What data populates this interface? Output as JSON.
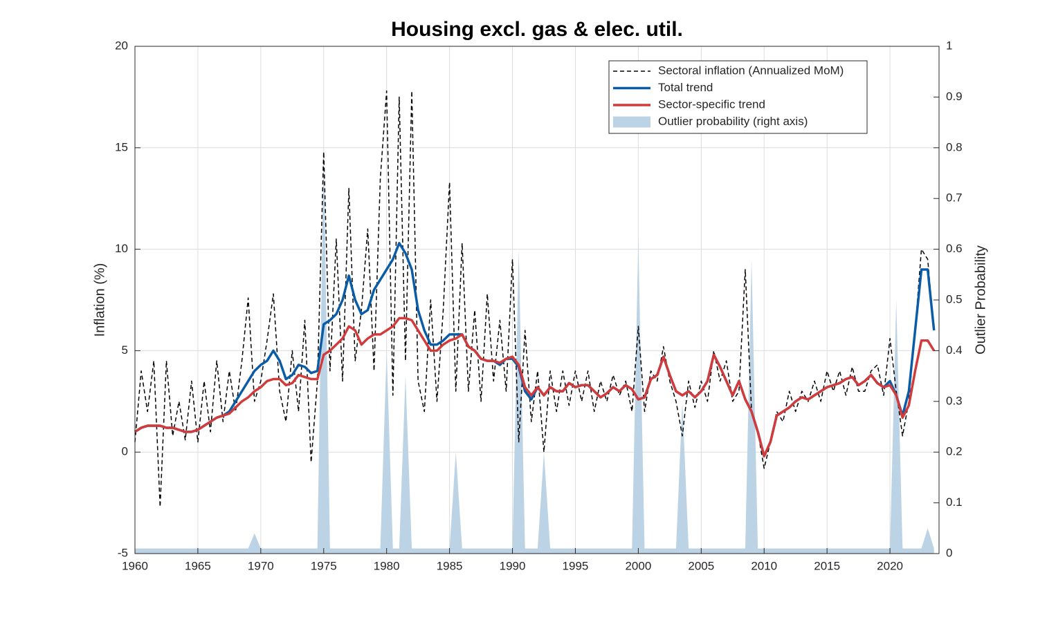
{
  "chart_data": {
    "type": "line",
    "title": "Housing excl. gas & elec. util.",
    "ylabel": "Inflation (%)",
    "y2label": "Outlier Probability",
    "xlim": [
      1960,
      2023.9
    ],
    "ylim": [
      -5,
      20
    ],
    "y2lim": [
      0,
      1
    ],
    "xticks": [
      1960,
      1965,
      1970,
      1975,
      1980,
      1985,
      1990,
      1995,
      2000,
      2005,
      2010,
      2015,
      2020
    ],
    "yticks": [
      -5,
      0,
      5,
      10,
      15,
      20
    ],
    "y2ticks": [
      0,
      0.1,
      0.2,
      0.3,
      0.4,
      0.5,
      0.6,
      0.7,
      0.8,
      0.9,
      1
    ],
    "grid": true,
    "legend": "top-right",
    "x": [
      1960,
      1960.5,
      1961,
      1961.5,
      1962,
      1962.5,
      1963,
      1963.5,
      1964,
      1964.5,
      1965,
      1965.5,
      1966,
      1966.5,
      1967,
      1967.5,
      1968,
      1968.5,
      1969,
      1969.5,
      1970,
      1970.5,
      1971,
      1971.5,
      1972,
      1972.5,
      1973,
      1973.5,
      1974,
      1974.5,
      1975,
      1975.5,
      1976,
      1976.5,
      1977,
      1977.5,
      1978,
      1978.5,
      1979,
      1979.5,
      1980,
      1980.5,
      1981,
      1981.5,
      1982,
      1982.5,
      1983,
      1983.5,
      1984,
      1984.5,
      1985,
      1985.5,
      1986,
      1986.5,
      1987,
      1987.5,
      1988,
      1988.5,
      1989,
      1989.5,
      1990,
      1990.5,
      1991,
      1991.5,
      1992,
      1992.5,
      1993,
      1993.5,
      1994,
      1994.5,
      1995,
      1995.5,
      1996,
      1996.5,
      1997,
      1997.5,
      1998,
      1998.5,
      1999,
      1999.5,
      2000,
      2000.5,
      2001,
      2001.5,
      2002,
      2002.5,
      2003,
      2003.5,
      2004,
      2004.5,
      2005,
      2005.5,
      2006,
      2006.5,
      2007,
      2007.5,
      2008,
      2008.5,
      2009,
      2009.5,
      2010,
      2010.5,
      2011,
      2011.5,
      2012,
      2012.5,
      2013,
      2013.5,
      2014,
      2014.5,
      2015,
      2015.5,
      2016,
      2016.5,
      2017,
      2017.5,
      2018,
      2018.5,
      2019,
      2019.5,
      2020,
      2020.5,
      2021,
      2021.5,
      2022,
      2022.5,
      2023,
      2023.5
    ],
    "series": [
      {
        "name": "Outlier probability (right axis)",
        "color": "#bcd3e6",
        "kind": "area",
        "axis": "y2",
        "values": [
          0.01,
          0.01,
          0.01,
          0.01,
          0.01,
          0.01,
          0.01,
          0.01,
          0.01,
          0.01,
          0.01,
          0.01,
          0.01,
          0.01,
          0.01,
          0.01,
          0.01,
          0.01,
          0.01,
          0.04,
          0.01,
          0.01,
          0.01,
          0.01,
          0.01,
          0.01,
          0.01,
          0.01,
          0.01,
          0.01,
          0.8,
          0.01,
          0.01,
          0.01,
          0.01,
          0.01,
          0.01,
          0.01,
          0.01,
          0.01,
          0.4,
          0.01,
          0.01,
          0.35,
          0.01,
          0.01,
          0.01,
          0.01,
          0.01,
          0.01,
          0.01,
          0.2,
          0.01,
          0.01,
          0.01,
          0.01,
          0.01,
          0.01,
          0.01,
          0.01,
          0.01,
          0.6,
          0.01,
          0.01,
          0.01,
          0.2,
          0.01,
          0.01,
          0.01,
          0.01,
          0.01,
          0.01,
          0.01,
          0.01,
          0.01,
          0.01,
          0.01,
          0.01,
          0.01,
          0.01,
          0.62,
          0.01,
          0.01,
          0.01,
          0.01,
          0.01,
          0.01,
          0.3,
          0.01,
          0.01,
          0.01,
          0.01,
          0.01,
          0.01,
          0.01,
          0.01,
          0.01,
          0.01,
          0.58,
          0.01,
          0.01,
          0.01,
          0.01,
          0.01,
          0.01,
          0.01,
          0.01,
          0.01,
          0.01,
          0.01,
          0.01,
          0.01,
          0.01,
          0.01,
          0.01,
          0.01,
          0.01,
          0.01,
          0.01,
          0.01,
          0.01,
          0.5,
          0.01,
          0.01,
          0.01,
          0.01,
          0.05,
          0.01
        ]
      },
      {
        "name": "Sectoral inflation (Annualized MoM)",
        "color": "#000000",
        "kind": "dashed",
        "values": [
          0.5,
          4.0,
          2.0,
          4.5,
          -2.7,
          4.5,
          0.8,
          2.5,
          0.6,
          3.5,
          0.5,
          3.5,
          1.0,
          4.5,
          1.5,
          4.0,
          2.0,
          4.5,
          7.6,
          2.5,
          3.5,
          5.5,
          7.8,
          3.0,
          1.5,
          5.0,
          2.0,
          6.5,
          -0.5,
          3.5,
          14.8,
          4.0,
          10.5,
          3.5,
          13.0,
          4.5,
          7.0,
          11.0,
          4.0,
          13.5,
          17.8,
          2.8,
          17.5,
          4.5,
          17.8,
          3.5,
          2.0,
          7.5,
          2.5,
          7.0,
          13.3,
          3.0,
          10.3,
          3.0,
          7.0,
          2.5,
          7.8,
          3.5,
          6.5,
          3.0,
          9.5,
          0.5,
          6.0,
          1.5,
          4.0,
          0.0,
          4.0,
          2.0,
          4.0,
          2.3,
          4.0,
          2.5,
          4.0,
          2.0,
          3.5,
          2.5,
          3.8,
          2.8,
          3.5,
          2.0,
          6.2,
          2.0,
          4.0,
          3.5,
          5.2,
          3.5,
          2.5,
          0.8,
          3.5,
          2.2,
          3.5,
          2.5,
          5.0,
          3.5,
          4.5,
          2.5,
          3.0,
          9.0,
          2.0,
          1.0,
          -0.8,
          0.5,
          2.0,
          1.5,
          3.0,
          2.0,
          3.0,
          2.5,
          3.5,
          2.5,
          4.0,
          3.0,
          4.0,
          2.8,
          4.2,
          3.0,
          3.0,
          4.0,
          4.3,
          2.8,
          5.6,
          3.0,
          0.8,
          2.5,
          6.0,
          10.0,
          9.5,
          6.0
        ]
      },
      {
        "name": "Total trend",
        "color": "#0b5ca6",
        "kind": "solid",
        "values": [
          1.0,
          1.2,
          1.3,
          1.3,
          1.3,
          1.2,
          1.2,
          1.1,
          1.0,
          1.0,
          1.1,
          1.3,
          1.5,
          1.7,
          1.8,
          2.0,
          2.5,
          3.0,
          3.5,
          4.0,
          4.3,
          4.5,
          5.0,
          4.5,
          3.6,
          3.8,
          4.3,
          4.2,
          3.9,
          4.0,
          6.3,
          6.5,
          6.8,
          7.5,
          8.7,
          7.5,
          6.8,
          7.0,
          8.0,
          8.5,
          9.0,
          9.5,
          10.3,
          9.8,
          9.0,
          7.0,
          6.0,
          5.3,
          5.3,
          5.5,
          5.8,
          5.8,
          5.8,
          5.2,
          5.0,
          4.6,
          4.5,
          4.5,
          4.3,
          4.6,
          4.6,
          4.2,
          3.0,
          2.6,
          3.2,
          2.8,
          3.2,
          3.0,
          3.0,
          3.4,
          3.2,
          3.3,
          3.3,
          3.0,
          2.7,
          2.9,
          3.2,
          3.0,
          3.3,
          3.1,
          2.6,
          2.7,
          3.6,
          3.8,
          4.7,
          3.8,
          3.0,
          2.8,
          3.0,
          2.7,
          3.0,
          3.5,
          4.8,
          4.2,
          3.5,
          2.8,
          3.5,
          2.6,
          2.0,
          1.0,
          -0.2,
          0.5,
          1.8,
          2.0,
          2.2,
          2.5,
          2.7,
          2.6,
          2.8,
          3.0,
          3.2,
          3.3,
          3.4,
          3.6,
          3.7,
          3.3,
          3.5,
          3.8,
          3.4,
          3.2,
          3.5,
          2.8,
          1.8,
          3.0,
          6.0,
          9.0,
          9.0,
          6.0
        ]
      },
      {
        "name": "Sector-specific trend",
        "color": "#d13b3b",
        "kind": "solid",
        "values": [
          1.0,
          1.2,
          1.3,
          1.3,
          1.3,
          1.2,
          1.2,
          1.1,
          1.0,
          1.0,
          1.1,
          1.3,
          1.5,
          1.7,
          1.8,
          1.9,
          2.2,
          2.5,
          2.7,
          3.0,
          3.2,
          3.5,
          3.6,
          3.6,
          3.3,
          3.4,
          3.8,
          3.7,
          3.6,
          3.6,
          4.8,
          5.0,
          5.3,
          5.6,
          6.2,
          6.0,
          5.3,
          5.6,
          5.8,
          5.8,
          6.0,
          6.2,
          6.6,
          6.6,
          6.5,
          6.0,
          5.5,
          5.0,
          5.0,
          5.3,
          5.5,
          5.6,
          5.8,
          5.2,
          5.0,
          4.6,
          4.5,
          4.5,
          4.4,
          4.6,
          4.7,
          4.3,
          3.2,
          2.8,
          3.2,
          2.8,
          3.2,
          3.0,
          3.0,
          3.4,
          3.2,
          3.3,
          3.3,
          3.0,
          2.7,
          2.9,
          3.2,
          3.0,
          3.3,
          3.1,
          2.6,
          2.7,
          3.6,
          3.8,
          4.7,
          3.8,
          3.0,
          2.8,
          3.0,
          2.7,
          3.0,
          3.5,
          4.8,
          4.2,
          3.5,
          2.8,
          3.5,
          2.6,
          2.0,
          1.0,
          -0.2,
          0.5,
          1.8,
          2.0,
          2.2,
          2.5,
          2.7,
          2.6,
          2.8,
          3.0,
          3.2,
          3.3,
          3.4,
          3.6,
          3.7,
          3.3,
          3.5,
          3.8,
          3.4,
          3.2,
          3.3,
          2.8,
          1.7,
          2.3,
          4.0,
          5.5,
          5.5,
          5.0
        ]
      }
    ]
  }
}
